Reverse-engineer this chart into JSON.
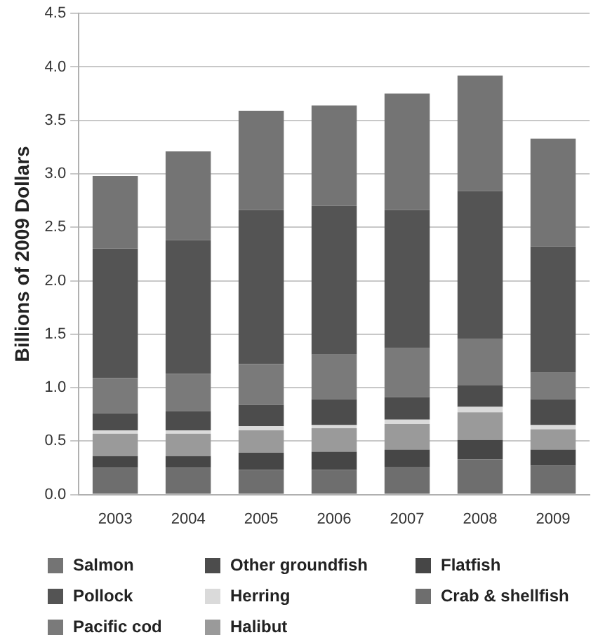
{
  "chart_data": {
    "type": "bar",
    "stacked": true,
    "ylabel": "Billions of 2009 Dollars",
    "categories": [
      "2003",
      "2004",
      "2005",
      "2006",
      "2007",
      "2008",
      "2009"
    ],
    "ylim": [
      0,
      4.5
    ],
    "yticks": [
      {
        "value": 0,
        "label": "0.0"
      },
      {
        "value": 0.5,
        "label": "0.5"
      },
      {
        "value": 1,
        "label": "1.0"
      },
      {
        "value": 1.5,
        "label": "1.5"
      },
      {
        "value": 2,
        "label": "2.0"
      },
      {
        "value": 2.5,
        "label": "2.5"
      },
      {
        "value": 3,
        "label": "3.0"
      },
      {
        "value": 3.5,
        "label": "3.5"
      },
      {
        "value": 4,
        "label": "4.0"
      },
      {
        "value": 4.5,
        "label": "4.5"
      }
    ],
    "grid": "y",
    "legend": "bottom",
    "series": [
      {
        "name": "Crab & shellfish",
        "color": "#6e6e6e",
        "values": [
          0.25,
          0.25,
          0.23,
          0.23,
          0.26,
          0.33,
          0.27
        ]
      },
      {
        "name": "Flatfish",
        "color": "#464646",
        "values": [
          0.11,
          0.11,
          0.16,
          0.17,
          0.16,
          0.18,
          0.15
        ]
      },
      {
        "name": "Halibut",
        "color": "#9a9a9a",
        "values": [
          0.21,
          0.21,
          0.21,
          0.22,
          0.24,
          0.26,
          0.19
        ]
      },
      {
        "name": "Herring",
        "color": "#dadada",
        "values": [
          0.03,
          0.03,
          0.04,
          0.03,
          0.04,
          0.05,
          0.04
        ]
      },
      {
        "name": "Other groundfish",
        "color": "#4c4c4c",
        "values": [
          0.16,
          0.18,
          0.2,
          0.24,
          0.21,
          0.2,
          0.24
        ]
      },
      {
        "name": "Pacific cod",
        "color": "#7a7a7a",
        "values": [
          0.33,
          0.35,
          0.38,
          0.42,
          0.46,
          0.44,
          0.25
        ]
      },
      {
        "name": "Pollock",
        "color": "#545454",
        "values": [
          1.21,
          1.25,
          1.44,
          1.39,
          1.29,
          1.38,
          1.18
        ]
      },
      {
        "name": "Salmon",
        "color": "#747474",
        "values": [
          0.68,
          0.83,
          0.93,
          0.94,
          1.09,
          1.08,
          1.01
        ]
      }
    ]
  }
}
